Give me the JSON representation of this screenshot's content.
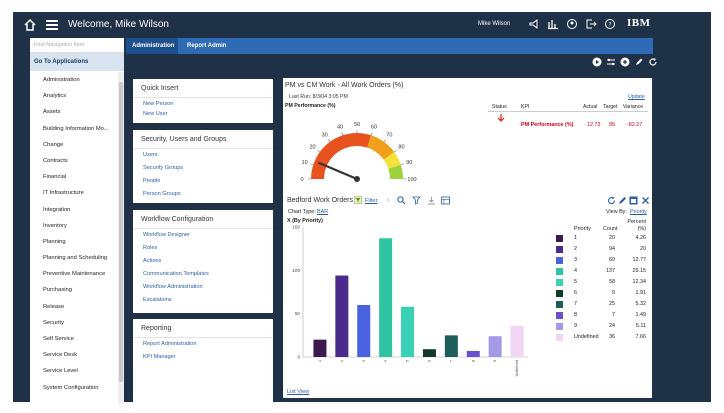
{
  "header": {
    "welcome": "Welcome, Mike Wilson",
    "user": "Mike Wilson",
    "brand": "IBM"
  },
  "sidebar": {
    "search_placeholder": "Find Navigation Item",
    "goto_label": "Go To Applications",
    "items": [
      "Administration",
      "Analytics",
      "Assets",
      "Building Information Mo...",
      "Change",
      "Contracts",
      "Financial",
      "IT Infrastructure",
      "Integration",
      "Inventory",
      "Planning",
      "Planning and Scheduling",
      "Preventive Maintenance",
      "Purchasing",
      "Release",
      "Security",
      "Self Service",
      "Service Desk",
      "Service Level",
      "System Configuration"
    ]
  },
  "tabs": [
    "Administration",
    "Report Admin"
  ],
  "quick_insert": {
    "title": "Quick Insert",
    "links": [
      "New Person",
      "New User"
    ]
  },
  "security": {
    "title": "Security, Users and Groups",
    "links": [
      "Users",
      "Security Groups",
      "People",
      "Person Groups"
    ]
  },
  "workflow": {
    "title": "Workflow Configuration",
    "links": [
      "Workflow Designer",
      "Roles",
      "Actions",
      "Communication Templates",
      "Workflow Administration",
      "Escalations"
    ]
  },
  "reporting": {
    "title": "Reporting",
    "links": [
      "Report Administration",
      "KPI Manager"
    ]
  },
  "pm_panel": {
    "title": "PM vs CM Work - All Work Orders (%)",
    "last_run": "Last Run: 8/3/04 3:05 PM",
    "update": "Update",
    "subtitle": "PM Performance (%)",
    "gauge_ticks": [
      "0",
      "10",
      "20",
      "30",
      "40",
      "50",
      "60",
      "70",
      "80",
      "90",
      "100"
    ],
    "gauge_value": 12.73,
    "table_headers": [
      "Status",
      "KPI",
      "Actual",
      "Target",
      "Variance"
    ],
    "row": {
      "kpi": "PM Performance (%)",
      "actual": "12.73",
      "target": "95",
      "variance": "-82.27"
    }
  },
  "wo_panel": {
    "title": "Bedford Work Orders",
    "filter": "Filter",
    "chart_type_label": "Chart Type:",
    "chart_type_value": "BAR",
    "view_by_label": "View By:",
    "view_by_value": "Priority",
    "list_view": "List View",
    "table_headers": [
      "Priority",
      "Count",
      "Percent (%)"
    ]
  },
  "chart_data": {
    "type": "bar",
    "title": "",
    "ylabel": "X (By Priority)",
    "xlabel": "",
    "categories": [
      "1",
      "2",
      "3",
      "4",
      "5",
      "6",
      "7",
      "8",
      "9",
      "Undefined"
    ],
    "values": [
      20,
      94,
      60,
      137,
      58,
      9,
      25,
      7,
      24,
      36
    ],
    "percents": [
      "4.26",
      "20",
      "12.77",
      "29.15",
      "12.34",
      "1.91",
      "5.32",
      "1.49",
      "5.11",
      "7.66"
    ],
    "colors": [
      "#3b1a4f",
      "#4a2a8a",
      "#4a62e0",
      "#2fc4a0",
      "#3ad1b7",
      "#123a2c",
      "#1d5e5b",
      "#6a4fd0",
      "#a49ae8",
      "#f0d6f2"
    ],
    "yticks": [
      "0",
      "50",
      "100",
      "150"
    ],
    "ylim": [
      0,
      150
    ],
    "grid": false
  }
}
